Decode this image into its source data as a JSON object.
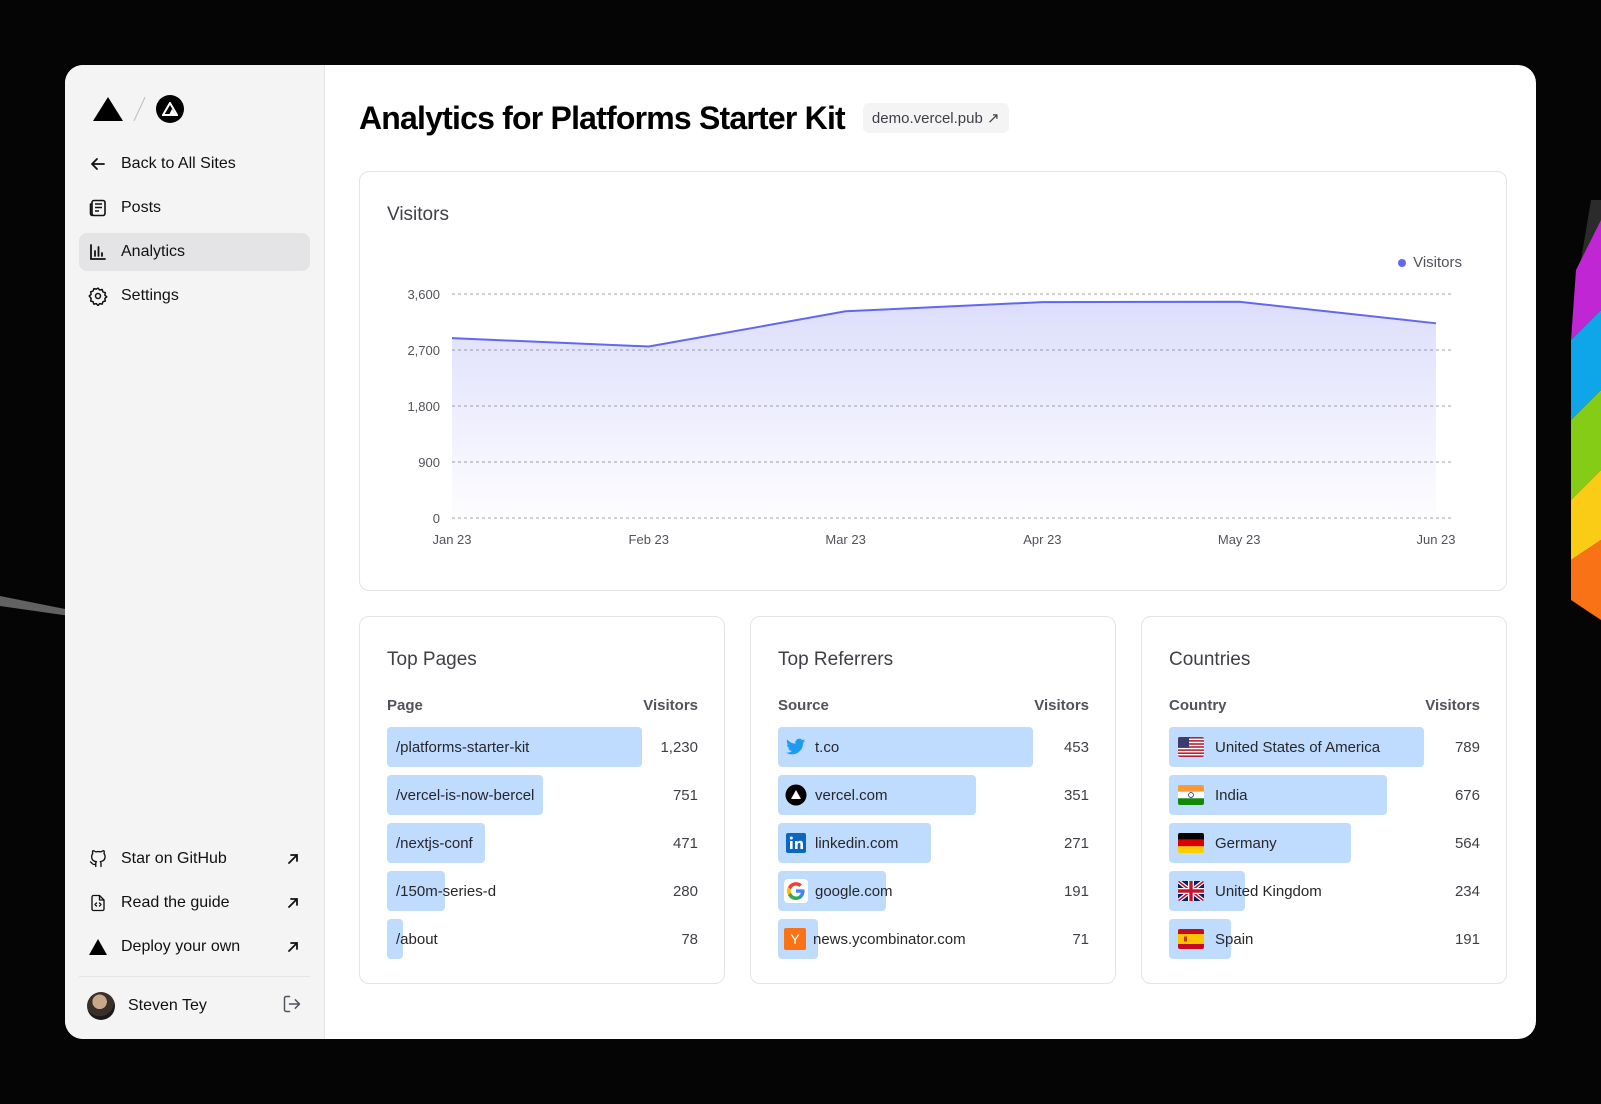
{
  "sidebar": {
    "nav": [
      {
        "label": "Back to All Sites",
        "icon": "arrow-left-icon"
      },
      {
        "label": "Posts",
        "icon": "newspaper-icon"
      },
      {
        "label": "Analytics",
        "icon": "bar-chart-icon",
        "active": true
      },
      {
        "label": "Settings",
        "icon": "gear-icon"
      }
    ],
    "external": [
      {
        "label": "Star on GitHub",
        "icon": "github-icon"
      },
      {
        "label": "Read the guide",
        "icon": "file-code-icon"
      },
      {
        "label": "Deploy your own",
        "icon": "vercel-triangle-icon"
      }
    ],
    "user": {
      "name": "Steven Tey"
    }
  },
  "header": {
    "title": "Analytics for Platforms Starter Kit",
    "site_link": "demo.vercel.pub ↗"
  },
  "chart_data": {
    "type": "area",
    "title": "Visitors",
    "categories": [
      "Jan 23",
      "Feb 23",
      "Mar 23",
      "Apr 23",
      "May 23",
      "Jun 23"
    ],
    "series": [
      {
        "name": "Visitors",
        "values": [
          2890,
          2756,
          3322,
          3470,
          3475,
          3129
        ]
      }
    ],
    "y_ticks": [
      "0",
      "900",
      "1,800",
      "2,700",
      "3,600"
    ],
    "ylim": [
      0,
      3600
    ],
    "legend": "top-right",
    "grid": true,
    "color": "#6366f1"
  },
  "top_pages": {
    "title": "Top Pages",
    "col_left": "Page",
    "col_right": "Visitors",
    "rows": [
      {
        "label": "/platforms-starter-kit",
        "value": "1,230",
        "n": 1230
      },
      {
        "label": "/vercel-is-now-bercel",
        "value": "751",
        "n": 751
      },
      {
        "label": "/nextjs-conf",
        "value": "471",
        "n": 471
      },
      {
        "label": "/150m-series-d",
        "value": "280",
        "n": 280
      },
      {
        "label": "/about",
        "value": "78",
        "n": 78
      }
    ]
  },
  "top_referrers": {
    "title": "Top Referrers",
    "col_left": "Source",
    "col_right": "Visitors",
    "rows": [
      {
        "label": "t.co",
        "value": "453",
        "n": 453,
        "icon": "twitter-icon"
      },
      {
        "label": "vercel.com",
        "value": "351",
        "n": 351,
        "icon": "vercel-icon"
      },
      {
        "label": "linkedin.com",
        "value": "271",
        "n": 271,
        "icon": "linkedin-icon"
      },
      {
        "label": "google.com",
        "value": "191",
        "n": 191,
        "icon": "google-icon"
      },
      {
        "label": "news.ycombinator.com",
        "value": "71",
        "n": 71,
        "icon": "ycombinator-icon"
      }
    ]
  },
  "countries": {
    "title": "Countries",
    "col_left": "Country",
    "col_right": "Visitors",
    "rows": [
      {
        "label": "United States of America",
        "value": "789",
        "n": 789,
        "icon": "us-flag-icon"
      },
      {
        "label": "India",
        "value": "676",
        "n": 676,
        "icon": "india-flag-icon"
      },
      {
        "label": "Germany",
        "value": "564",
        "n": 564,
        "icon": "germany-flag-icon"
      },
      {
        "label": "United Kingdom",
        "value": "234",
        "n": 234,
        "icon": "uk-flag-icon"
      },
      {
        "label": "Spain",
        "value": "191",
        "n": 191,
        "icon": "spain-flag-icon"
      }
    ]
  },
  "colors": {
    "accent": "#6366f1",
    "bar": "#bfdbfe",
    "sidebar": "#f4f4f5"
  }
}
